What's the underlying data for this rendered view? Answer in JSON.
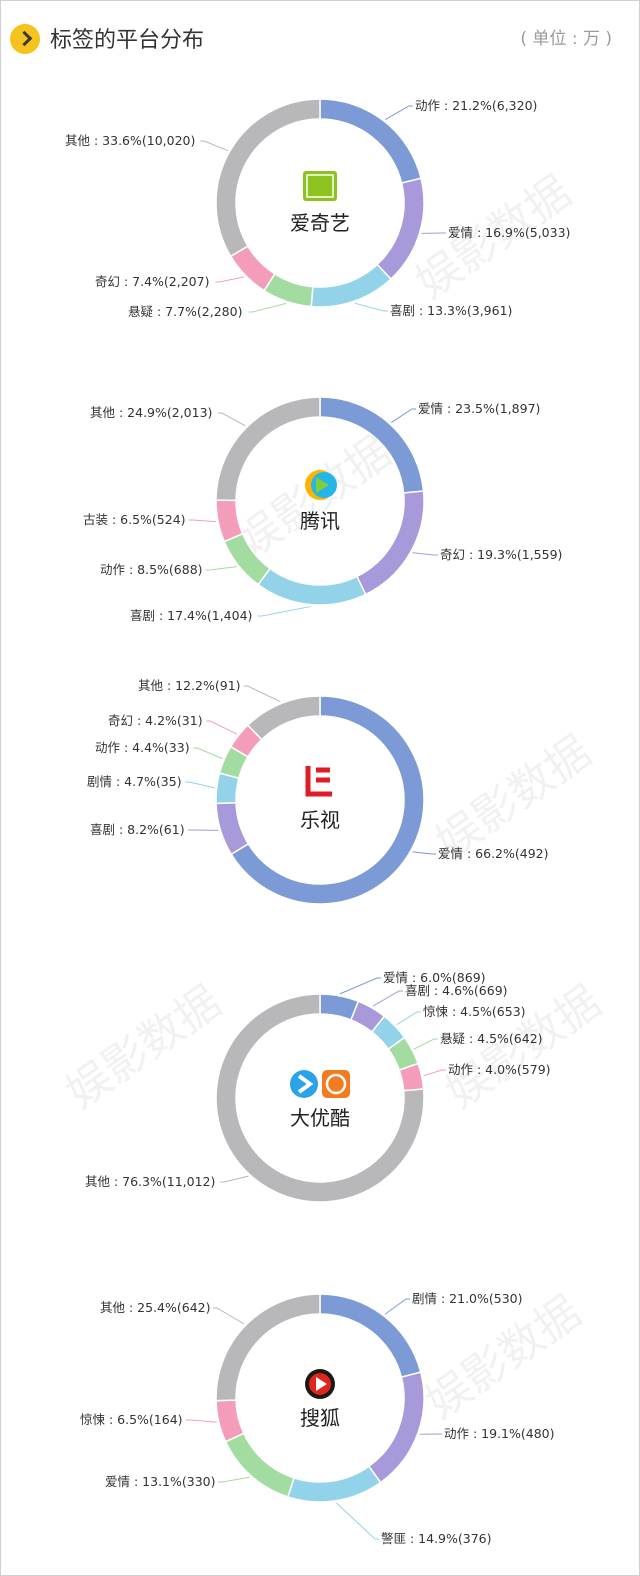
{
  "header": {
    "title": "标签的平台分布",
    "unit": "( 单位 : 万 )"
  },
  "watermark": "娱影数据",
  "colors": {
    "blue": "#7b9ad6",
    "purple": "#a899da",
    "cyan": "#93d3ea",
    "green": "#a3dca0",
    "pink": "#f39dbb",
    "gray": "#b8b8bb"
  },
  "chart_data": [
    {
      "type": "pie",
      "platform": "爱奇艺",
      "slices": [
        {
          "label": "动作",
          "percent": 21.2,
          "value": 6320,
          "text": "动作 : 21.2%(6,320)",
          "color": "#7b9ad6"
        },
        {
          "label": "爱情",
          "percent": 16.9,
          "value": 5033,
          "text": "爱情 : 16.9%(5,033)",
          "color": "#a899da"
        },
        {
          "label": "喜剧",
          "percent": 13.3,
          "value": 3961,
          "text": "喜剧 : 13.3%(3,961)",
          "color": "#93d3ea"
        },
        {
          "label": "悬疑",
          "percent": 7.7,
          "value": 2280,
          "text": "悬疑 : 7.7%(2,280)",
          "color": "#a3dca0"
        },
        {
          "label": "奇幻",
          "percent": 7.4,
          "value": 2207,
          "text": "奇幻 : 7.4%(2,207)",
          "color": "#f39dbb"
        },
        {
          "label": "其他",
          "percent": 33.6,
          "value": 10020,
          "text": "其他 : 33.6%(10,020)",
          "color": "#b8b8bb"
        }
      ]
    },
    {
      "type": "pie",
      "platform": "腾讯",
      "slices": [
        {
          "label": "爱情",
          "percent": 23.5,
          "value": 1897,
          "text": "爱情 : 23.5%(1,897)",
          "color": "#7b9ad6"
        },
        {
          "label": "奇幻",
          "percent": 19.3,
          "value": 1559,
          "text": "奇幻 : 19.3%(1,559)",
          "color": "#a899da"
        },
        {
          "label": "喜剧",
          "percent": 17.4,
          "value": 1404,
          "text": "喜剧 : 17.4%(1,404)",
          "color": "#93d3ea"
        },
        {
          "label": "动作",
          "percent": 8.5,
          "value": 688,
          "text": "动作 : 8.5%(688)",
          "color": "#a3dca0"
        },
        {
          "label": "古装",
          "percent": 6.5,
          "value": 524,
          "text": "古装 : 6.5%(524)",
          "color": "#f39dbb"
        },
        {
          "label": "其他",
          "percent": 24.9,
          "value": 2013,
          "text": "其他 : 24.9%(2,013)",
          "color": "#b8b8bb"
        }
      ]
    },
    {
      "type": "pie",
      "platform": "乐视",
      "slices": [
        {
          "label": "爱情",
          "percent": 66.2,
          "value": 492,
          "text": "爱情 : 66.2%(492)",
          "color": "#7b9ad6"
        },
        {
          "label": "喜剧",
          "percent": 8.2,
          "value": 61,
          "text": "喜剧 : 8.2%(61)",
          "color": "#a899da"
        },
        {
          "label": "剧情",
          "percent": 4.7,
          "value": 35,
          "text": "剧情 : 4.7%(35)",
          "color": "#93d3ea"
        },
        {
          "label": "动作",
          "percent": 4.4,
          "value": 33,
          "text": "动作 : 4.4%(33)",
          "color": "#a3dca0"
        },
        {
          "label": "奇幻",
          "percent": 4.2,
          "value": 31,
          "text": "奇幻 : 4.2%(31)",
          "color": "#f39dbb"
        },
        {
          "label": "其他",
          "percent": 12.2,
          "value": 91,
          "text": "其他 : 12.2%(91)",
          "color": "#b8b8bb"
        }
      ]
    },
    {
      "type": "pie",
      "platform": "大优酷",
      "slices": [
        {
          "label": "爱情",
          "percent": 6.0,
          "value": 869,
          "text": "爱情 : 6.0%(869)",
          "color": "#7b9ad6"
        },
        {
          "label": "喜剧",
          "percent": 4.6,
          "value": 669,
          "text": "喜剧 : 4.6%(669)",
          "color": "#a899da"
        },
        {
          "label": "惊悚",
          "percent": 4.5,
          "value": 653,
          "text": "惊悚 : 4.5%(653)",
          "color": "#93d3ea"
        },
        {
          "label": "悬疑",
          "percent": 4.5,
          "value": 642,
          "text": "悬疑 : 4.5%(642)",
          "color": "#a3dca0"
        },
        {
          "label": "动作",
          "percent": 4.0,
          "value": 579,
          "text": "动作 : 4.0%(579)",
          "color": "#f39dbb"
        },
        {
          "label": "其他",
          "percent": 76.3,
          "value": 11012,
          "text": "其他 : 76.3%(11,012)",
          "color": "#b8b8bb"
        }
      ]
    },
    {
      "type": "pie",
      "platform": "搜狐",
      "slices": [
        {
          "label": "剧情",
          "percent": 21.0,
          "value": 530,
          "text": "剧情 : 21.0%(530)",
          "color": "#7b9ad6"
        },
        {
          "label": "动作",
          "percent": 19.1,
          "value": 480,
          "text": "动作 : 19.1%(480)",
          "color": "#a899da"
        },
        {
          "label": "警匪",
          "percent": 14.9,
          "value": 376,
          "text": "警匪 : 14.9%(376)",
          "color": "#93d3ea"
        },
        {
          "label": "爱情",
          "percent": 13.1,
          "value": 330,
          "text": "爱情 : 13.1%(330)",
          "color": "#a3dca0"
        },
        {
          "label": "惊悚",
          "percent": 6.5,
          "value": 164,
          "text": "惊悚 : 6.5%(164)",
          "color": "#f39dbb"
        },
        {
          "label": "其他",
          "percent": 25.4,
          "value": 642,
          "text": "其他 : 25.4%(642)",
          "color": "#b8b8bb"
        }
      ]
    }
  ]
}
